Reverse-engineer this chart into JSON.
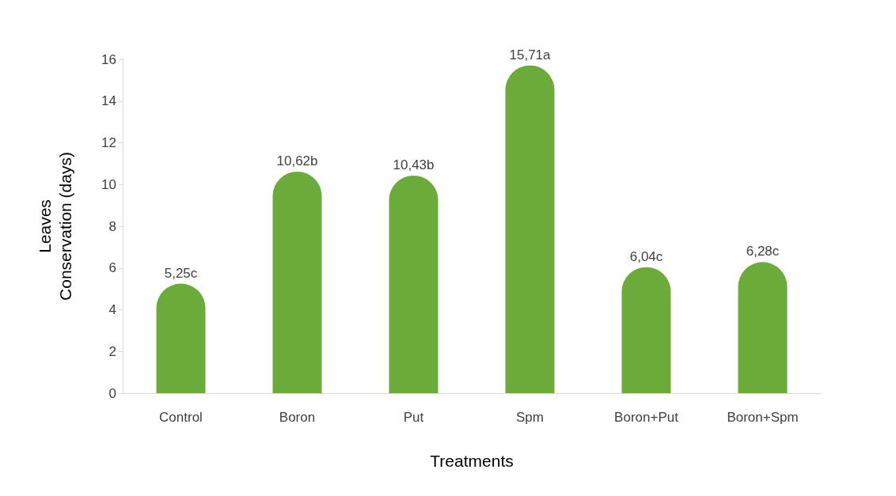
{
  "chart_data": {
    "type": "bar",
    "xlabel": "Treatments",
    "ylabel": "Leaves Conservation (days)",
    "categories": [
      "Control",
      "Boron",
      "Put",
      "Spm",
      "Boron+Put",
      "Boron+Spm"
    ],
    "values": [
      5.25,
      10.62,
      10.43,
      15.71,
      6.04,
      6.28
    ],
    "value_labels": [
      "5,25c",
      "10,62b",
      "10,43b",
      "15,71a",
      "6,04c",
      "6,28c"
    ],
    "color": "#6aab3a",
    "ylim": [
      0,
      16
    ],
    "yticks": [
      0,
      2,
      4,
      6,
      8,
      10,
      12,
      14,
      16
    ],
    "grid": false
  }
}
